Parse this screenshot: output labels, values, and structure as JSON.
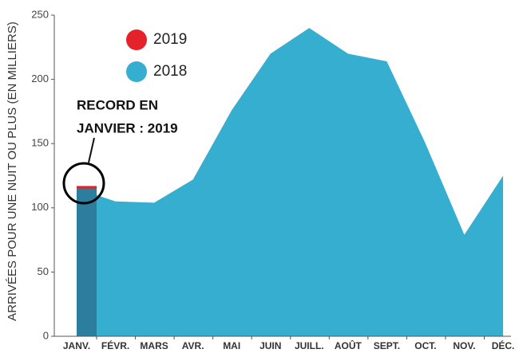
{
  "chart_data": {
    "type": "area",
    "y_label": "ARRIVÉES POUR UNE NUIT OU PLUS (EN MILLIERS)",
    "categories": [
      "JANV.",
      "FÉVR.",
      "MARS",
      "AVR.",
      "MAI",
      "JUIN",
      "JUILL.",
      "AOÛT",
      "SEPT.",
      "OCT.",
      "NOV.",
      "DÉC."
    ],
    "series": [
      {
        "name": "2019",
        "color": "#e52229",
        "type": "bar",
        "values": [
          117,
          null,
          null,
          null,
          null,
          null,
          null,
          null,
          null,
          null,
          null,
          null
        ]
      },
      {
        "name": "2018",
        "color": "#36aecf",
        "type": "area",
        "values": [
          115,
          105,
          104,
          122,
          176,
          220,
          240,
          220,
          214,
          150,
          79,
          125
        ]
      }
    ],
    "overlap_color": "#2b7e9e",
    "annotation": [
      "RECORD EN",
      "JANVIER : 2019"
    ],
    "ylim": [
      0,
      250
    ],
    "yticks": [
      0,
      50,
      100,
      150,
      200,
      250
    ]
  }
}
